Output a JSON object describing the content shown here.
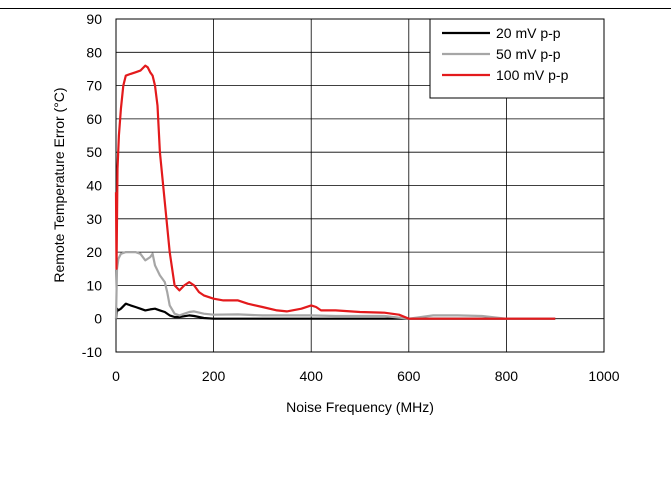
{
  "chart_data": {
    "type": "line",
    "xlabel": "Noise Frequency (MHz)",
    "ylabel": "Remote Temperature Error (°C)",
    "xlim": [
      0,
      1000
    ],
    "ylim": [
      -10,
      90
    ],
    "xticks": [
      0,
      200,
      400,
      600,
      800,
      1000
    ],
    "yticks": [
      -10,
      0,
      10,
      20,
      30,
      40,
      50,
      60,
      70,
      80,
      90
    ],
    "grid": true,
    "legend_position": "top-right",
    "series": [
      {
        "name": "20 mV p-p",
        "color": "#000000",
        "points": [
          [
            0,
            0
          ],
          [
            2,
            3
          ],
          [
            5,
            2.5
          ],
          [
            10,
            3
          ],
          [
            20,
            4.5
          ],
          [
            30,
            4
          ],
          [
            40,
            3.5
          ],
          [
            50,
            3
          ],
          [
            60,
            2.5
          ],
          [
            70,
            2.8
          ],
          [
            80,
            3
          ],
          [
            90,
            2.5
          ],
          [
            100,
            2
          ],
          [
            110,
            1
          ],
          [
            120,
            0.5
          ],
          [
            130,
            0.5
          ],
          [
            150,
            1
          ],
          [
            160,
            0.8
          ],
          [
            180,
            0.2
          ],
          [
            200,
            0
          ],
          [
            250,
            0
          ],
          [
            300,
            0
          ],
          [
            350,
            0
          ],
          [
            400,
            0
          ],
          [
            450,
            0
          ],
          [
            500,
            0
          ],
          [
            550,
            0
          ],
          [
            600,
            0
          ],
          [
            700,
            0
          ],
          [
            800,
            0
          ],
          [
            900,
            0
          ]
        ]
      },
      {
        "name": "50 mV p-p",
        "color": "#a6a6a6",
        "points": [
          [
            0,
            0
          ],
          [
            2,
            15
          ],
          [
            5,
            18
          ],
          [
            10,
            19.5
          ],
          [
            20,
            20
          ],
          [
            30,
            20
          ],
          [
            40,
            20
          ],
          [
            50,
            19.5
          ],
          [
            60,
            17.5
          ],
          [
            70,
            18.5
          ],
          [
            75,
            19.5
          ],
          [
            80,
            16
          ],
          [
            90,
            13
          ],
          [
            100,
            11
          ],
          [
            105,
            8
          ],
          [
            110,
            4
          ],
          [
            120,
            1.5
          ],
          [
            130,
            1
          ],
          [
            140,
            1.5
          ],
          [
            150,
            2
          ],
          [
            160,
            2.2
          ],
          [
            180,
            1.5
          ],
          [
            200,
            1.2
          ],
          [
            250,
            1.3
          ],
          [
            300,
            1
          ],
          [
            350,
            1
          ],
          [
            400,
            1
          ],
          [
            450,
            0.8
          ],
          [
            500,
            0.8
          ],
          [
            550,
            0.8
          ],
          [
            600,
            0
          ],
          [
            650,
            1
          ],
          [
            700,
            1
          ],
          [
            750,
            0.8
          ],
          [
            800,
            0
          ],
          [
            900,
            0
          ]
        ]
      },
      {
        "name": "100 mV p-p",
        "color": "#e31a1c",
        "points": [
          [
            0,
            38
          ],
          [
            1,
            15
          ],
          [
            3,
            45
          ],
          [
            6,
            55
          ],
          [
            10,
            63
          ],
          [
            15,
            70
          ],
          [
            20,
            73
          ],
          [
            30,
            73.5
          ],
          [
            40,
            74
          ],
          [
            50,
            74.5
          ],
          [
            60,
            76
          ],
          [
            65,
            75.5
          ],
          [
            70,
            74
          ],
          [
            75,
            73
          ],
          [
            80,
            70
          ],
          [
            85,
            64
          ],
          [
            90,
            50
          ],
          [
            100,
            35
          ],
          [
            110,
            20
          ],
          [
            120,
            10
          ],
          [
            130,
            8.5
          ],
          [
            140,
            10
          ],
          [
            150,
            11
          ],
          [
            160,
            10
          ],
          [
            170,
            8
          ],
          [
            180,
            7
          ],
          [
            200,
            6
          ],
          [
            220,
            5.5
          ],
          [
            250,
            5.5
          ],
          [
            270,
            4.5
          ],
          [
            300,
            3.5
          ],
          [
            330,
            2.5
          ],
          [
            350,
            2.2
          ],
          [
            380,
            3
          ],
          [
            400,
            4
          ],
          [
            410,
            3.5
          ],
          [
            420,
            2.5
          ],
          [
            450,
            2.5
          ],
          [
            500,
            2
          ],
          [
            550,
            1.8
          ],
          [
            580,
            1.2
          ],
          [
            600,
            0
          ],
          [
            700,
            0
          ],
          [
            800,
            0
          ],
          [
            900,
            0
          ]
        ]
      }
    ]
  }
}
